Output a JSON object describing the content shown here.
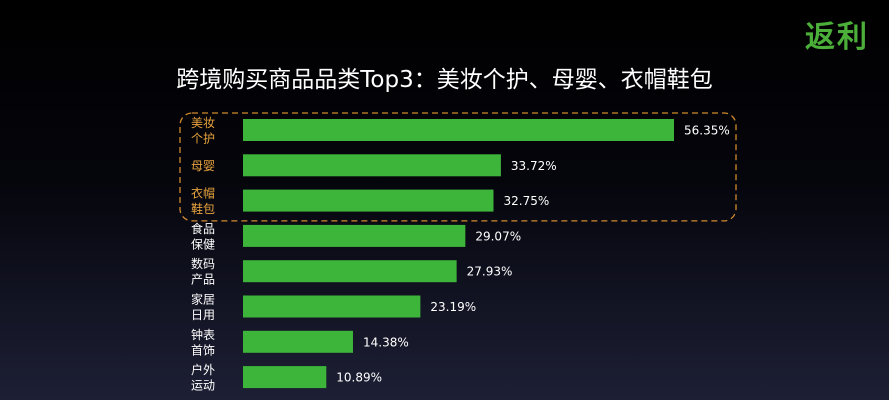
{
  "brand": {
    "logo_text": "返利"
  },
  "chart_data": {
    "type": "bar",
    "orientation": "horizontal",
    "title": "跨境购买商品品类Top3：美妆个护、母婴、衣帽鞋包",
    "categories": [
      [
        "美妆",
        "个护"
      ],
      [
        "母婴"
      ],
      [
        "衣帽",
        "鞋包"
      ],
      [
        "食品",
        "保健"
      ],
      [
        "数码",
        "产品"
      ],
      [
        "家居",
        "日用"
      ],
      [
        "钟表",
        "首饰"
      ],
      [
        "户外",
        "运动"
      ]
    ],
    "values": [
      56.35,
      33.72,
      32.75,
      29.07,
      27.93,
      23.19,
      14.38,
      10.89
    ],
    "value_labels": [
      "56.35%",
      "33.72%",
      "32.75%",
      "29.07%",
      "27.93%",
      "23.19%",
      "14.38%",
      "10.89%"
    ],
    "xlim": [
      0,
      56.35
    ],
    "highlighted_count": 3,
    "colors": {
      "bar": "#3db53a",
      "highlight_label": "#e8a33d",
      "label": "#ffffff",
      "value_label": "#ffffff",
      "highlight_box": "#d08a2e"
    }
  }
}
